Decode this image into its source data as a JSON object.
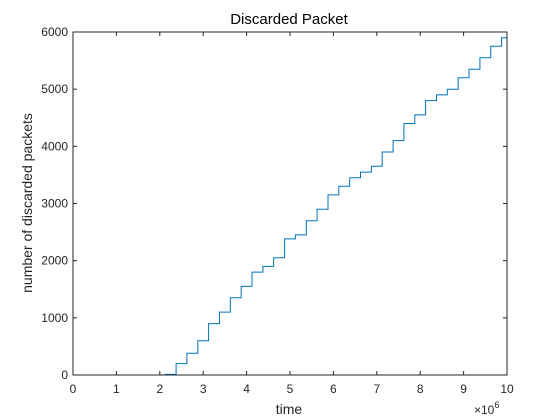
{
  "chart_data": {
    "type": "line",
    "title": "Discarded Packet",
    "xlabel": "time",
    "ylabel": "number of discarded packets",
    "x_exponent_label": "×10",
    "x_exponent_power": "6",
    "xlim": [
      0,
      10000000
    ],
    "ylim": [
      0,
      6000
    ],
    "x_ticks": [
      0,
      1000000,
      2000000,
      3000000,
      4000000,
      5000000,
      6000000,
      7000000,
      8000000,
      9000000,
      10000000
    ],
    "x_tick_labels": [
      "0",
      "1",
      "2",
      "3",
      "4",
      "5",
      "6",
      "7",
      "8",
      "9",
      "10"
    ],
    "y_ticks": [
      0,
      1000,
      2000,
      3000,
      4000,
      5000,
      6000
    ],
    "y_tick_labels": [
      "0",
      "1000",
      "2000",
      "3000",
      "4000",
      "5000",
      "6000"
    ],
    "grid": false,
    "line_color": "#0072BD",
    "series": [
      {
        "x": [
          0,
          2000000,
          2250000,
          2500000,
          2750000,
          3000000,
          3250000,
          3500000,
          3750000,
          4000000,
          4250000,
          4500000,
          4750000,
          5000000,
          5250000,
          5500000,
          5750000,
          6000000,
          6250000,
          6500000,
          6750000,
          7000000,
          7250000,
          7500000,
          7750000,
          8000000,
          8250000,
          8500000,
          8750000,
          9000000,
          9250000,
          9500000,
          9750000,
          10000000
        ],
        "y": [
          0,
          0,
          10,
          200,
          380,
          600,
          900,
          1100,
          1350,
          1550,
          1800,
          1900,
          2050,
          2380,
          2450,
          2700,
          2900,
          3150,
          3300,
          3450,
          3550,
          3650,
          3900,
          4100,
          4400,
          4550,
          4800,
          4900,
          5000,
          5200,
          5350,
          5550,
          5750,
          5900
        ]
      }
    ]
  }
}
